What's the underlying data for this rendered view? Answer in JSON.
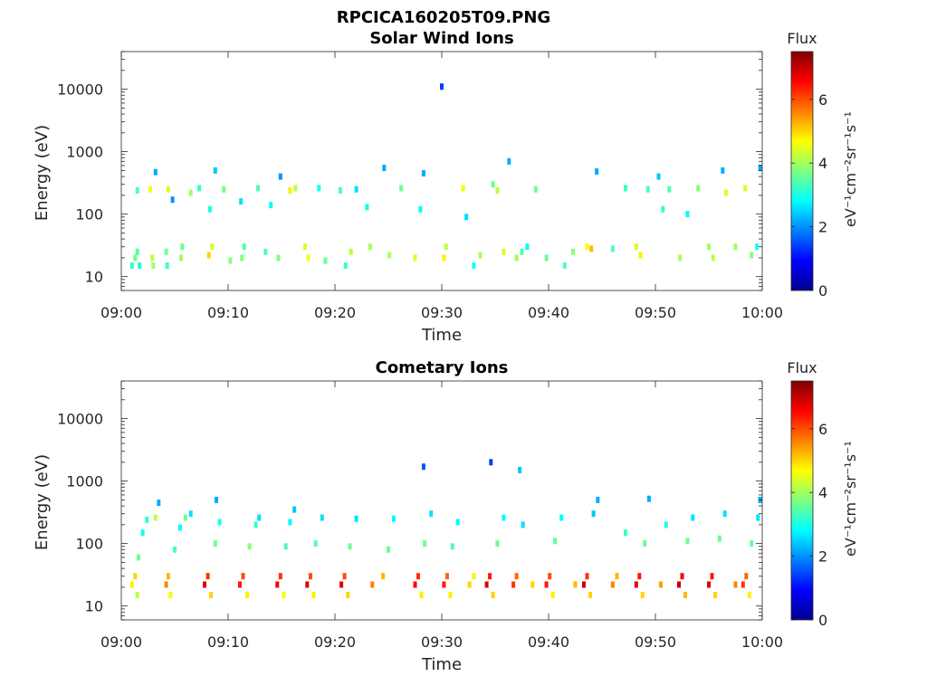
{
  "figure": {
    "filename": "RPCICA160205T09.PNG"
  },
  "colorbar": {
    "colormap": "jet",
    "title": "Flux",
    "unit_label": "eV⁻¹cm⁻²sr⁻¹s⁻¹",
    "range": [
      0,
      7.5
    ],
    "ticks": [
      0,
      2,
      4,
      6
    ]
  },
  "chart_data": [
    {
      "type": "heatmap",
      "title": "Solar Wind Ions",
      "xlabel": "Time",
      "ylabel": "Energy (eV)",
      "yscale": "log",
      "xlim": [
        "09:00",
        "10:00"
      ],
      "ylim": [
        6,
        40000
      ],
      "x_ticks": [
        "09:00",
        "09:10",
        "09:20",
        "09:30",
        "09:40",
        "09:50",
        "10:00"
      ],
      "y_ticks": [
        10,
        100,
        1000,
        10000
      ],
      "grid": false,
      "color_range": [
        0,
        7.5
      ],
      "cells": [
        [
          1.0,
          15,
          3.2
        ],
        [
          1.3,
          20,
          3.6
        ],
        [
          1.5,
          25,
          3.4
        ],
        [
          1.7,
          15,
          3.0
        ],
        [
          1.5,
          240,
          3.4
        ],
        [
          2.7,
          250,
          4.6
        ],
        [
          2.9,
          20,
          4.2
        ],
        [
          3.0,
          15,
          4.0
        ],
        [
          3.2,
          470,
          2.2
        ],
        [
          4.2,
          25,
          3.6
        ],
        [
          4.3,
          15,
          3.2
        ],
        [
          4.4,
          250,
          4.4
        ],
        [
          4.8,
          170,
          2.0
        ],
        [
          5.6,
          20,
          4.0
        ],
        [
          5.7,
          30,
          3.6
        ],
        [
          6.5,
          220,
          4.0
        ],
        [
          7.3,
          260,
          3.2
        ],
        [
          8.2,
          22,
          5.0
        ],
        [
          8.5,
          30,
          4.4
        ],
        [
          8.8,
          500,
          2.4
        ],
        [
          8.3,
          120,
          3.0
        ],
        [
          9.6,
          250,
          3.6
        ],
        [
          10.2,
          18,
          3.8
        ],
        [
          11.3,
          20,
          3.8
        ],
        [
          11.5,
          30,
          3.4
        ],
        [
          11.2,
          160,
          2.6
        ],
        [
          12.8,
          260,
          3.4
        ],
        [
          13.5,
          25,
          3.4
        ],
        [
          14.0,
          140,
          2.8
        ],
        [
          14.7,
          20,
          3.8
        ],
        [
          14.9,
          400,
          2.0
        ],
        [
          15.8,
          240,
          4.8
        ],
        [
          16.3,
          260,
          4.2
        ],
        [
          17.2,
          30,
          4.4
        ],
        [
          17.5,
          20,
          4.6
        ],
        [
          18.5,
          260,
          3.0
        ],
        [
          19.1,
          18,
          3.6
        ],
        [
          20.5,
          240,
          3.4
        ],
        [
          21.0,
          15,
          3.2
        ],
        [
          21.5,
          25,
          4.2
        ],
        [
          22.0,
          250,
          2.6
        ],
        [
          23.0,
          130,
          3.0
        ],
        [
          23.3,
          30,
          4.0
        ],
        [
          24.6,
          550,
          2.2
        ],
        [
          25.1,
          22,
          4.0
        ],
        [
          26.2,
          260,
          3.6
        ],
        [
          27.5,
          20,
          4.4
        ],
        [
          28.0,
          120,
          2.8
        ],
        [
          28.3,
          450,
          2.2
        ],
        [
          30.0,
          11000,
          1.4
        ],
        [
          30.2,
          20,
          4.8
        ],
        [
          30.4,
          30,
          4.2
        ],
        [
          32.0,
          260,
          4.6
        ],
        [
          32.3,
          90,
          2.6
        ],
        [
          33.0,
          15,
          3.0
        ],
        [
          33.6,
          22,
          4.0
        ],
        [
          34.8,
          300,
          3.6
        ],
        [
          35.2,
          240,
          4.2
        ],
        [
          35.8,
          25,
          4.4
        ],
        [
          36.3,
          700,
          2.2
        ],
        [
          37.0,
          20,
          4.0
        ],
        [
          37.5,
          25,
          3.4
        ],
        [
          38.0,
          30,
          2.8
        ],
        [
          38.8,
          250,
          3.6
        ],
        [
          39.8,
          20,
          3.6
        ],
        [
          41.5,
          15,
          3.4
        ],
        [
          42.3,
          25,
          3.8
        ],
        [
          43.6,
          30,
          4.6
        ],
        [
          44.0,
          28,
          5.2
        ],
        [
          44.5,
          480,
          2.2
        ],
        [
          46.0,
          28,
          3.4
        ],
        [
          47.2,
          260,
          3.2
        ],
        [
          48.2,
          30,
          4.4
        ],
        [
          48.6,
          22,
          4.8
        ],
        [
          49.3,
          250,
          3.4
        ],
        [
          50.3,
          400,
          2.4
        ],
        [
          50.7,
          120,
          3.2
        ],
        [
          51.3,
          250,
          3.4
        ],
        [
          52.3,
          20,
          4.0
        ],
        [
          53.0,
          100,
          2.8
        ],
        [
          54.0,
          260,
          3.8
        ],
        [
          55.0,
          30,
          4.0
        ],
        [
          55.4,
          20,
          4.2
        ],
        [
          56.3,
          500,
          2.2
        ],
        [
          56.6,
          220,
          4.4
        ],
        [
          57.5,
          30,
          4.0
        ],
        [
          58.4,
          260,
          4.4
        ],
        [
          59.0,
          22,
          3.8
        ],
        [
          59.5,
          30,
          3.0
        ],
        [
          59.8,
          550,
          2.2
        ]
      ]
    },
    {
      "type": "heatmap",
      "title": "Cometary Ions",
      "xlabel": "Time",
      "ylabel": "Energy (eV)",
      "yscale": "log",
      "xlim": [
        "09:00",
        "10:00"
      ],
      "ylim": [
        6,
        40000
      ],
      "x_ticks": [
        "09:00",
        "09:10",
        "09:20",
        "09:30",
        "09:40",
        "09:50",
        "10:00"
      ],
      "y_ticks": [
        10,
        100,
        1000,
        10000
      ],
      "grid": false,
      "color_range": [
        0,
        7.5
      ],
      "cells": [
        [
          1.0,
          22,
          4.8
        ],
        [
          1.3,
          30,
          5.0
        ],
        [
          1.5,
          15,
          4.2
        ],
        [
          1.6,
          60,
          3.6
        ],
        [
          2.0,
          150,
          3.0
        ],
        [
          2.4,
          240,
          3.2
        ],
        [
          3.2,
          260,
          4.2
        ],
        [
          3.5,
          450,
          2.2
        ],
        [
          4.2,
          22,
          5.6
        ],
        [
          4.4,
          30,
          5.2
        ],
        [
          4.6,
          15,
          4.6
        ],
        [
          5.0,
          80,
          3.4
        ],
        [
          5.5,
          180,
          2.8
        ],
        [
          6.0,
          260,
          3.6
        ],
        [
          6.5,
          300,
          2.6
        ],
        [
          7.8,
          22,
          6.8
        ],
        [
          8.1,
          30,
          6.2
        ],
        [
          8.4,
          15,
          5.0
        ],
        [
          8.8,
          100,
          3.6
        ],
        [
          9.2,
          220,
          3.0
        ],
        [
          8.9,
          500,
          2.2
        ],
        [
          11.1,
          22,
          6.4
        ],
        [
          11.4,
          30,
          6.0
        ],
        [
          11.8,
          15,
          4.8
        ],
        [
          12.0,
          90,
          3.8
        ],
        [
          12.6,
          200,
          3.2
        ],
        [
          12.9,
          260,
          2.6
        ],
        [
          14.6,
          22,
          6.6
        ],
        [
          14.9,
          30,
          6.2
        ],
        [
          15.2,
          15,
          4.6
        ],
        [
          15.4,
          90,
          3.4
        ],
        [
          15.8,
          220,
          2.8
        ],
        [
          16.2,
          350,
          2.4
        ],
        [
          17.4,
          22,
          6.8
        ],
        [
          17.7,
          30,
          6.0
        ],
        [
          18.0,
          15,
          4.8
        ],
        [
          18.2,
          100,
          3.4
        ],
        [
          18.8,
          260,
          2.6
        ],
        [
          20.6,
          22,
          6.8
        ],
        [
          20.9,
          30,
          6.0
        ],
        [
          21.2,
          15,
          5.0
        ],
        [
          21.4,
          90,
          3.6
        ],
        [
          22.0,
          250,
          2.6
        ],
        [
          23.5,
          22,
          5.6
        ],
        [
          24.5,
          30,
          5.2
        ],
        [
          25.0,
          80,
          3.6
        ],
        [
          25.5,
          250,
          2.8
        ],
        [
          27.5,
          22,
          6.6
        ],
        [
          27.8,
          30,
          6.2
        ],
        [
          28.1,
          15,
          4.8
        ],
        [
          28.4,
          100,
          3.6
        ],
        [
          28.3,
          1700,
          1.6
        ],
        [
          29.0,
          300,
          2.6
        ],
        [
          30.2,
          22,
          6.4
        ],
        [
          30.5,
          30,
          5.8
        ],
        [
          30.8,
          15,
          4.8
        ],
        [
          31.0,
          90,
          3.4
        ],
        [
          31.5,
          220,
          2.8
        ],
        [
          32.6,
          22,
          5.0
        ],
        [
          33.0,
          30,
          4.8
        ],
        [
          34.2,
          22,
          6.8
        ],
        [
          34.5,
          30,
          6.4
        ],
        [
          34.8,
          15,
          5.0
        ],
        [
          34.6,
          2000,
          1.4
        ],
        [
          35.2,
          100,
          3.6
        ],
        [
          35.8,
          260,
          2.8
        ],
        [
          36.7,
          22,
          6.2
        ],
        [
          37.0,
          30,
          5.8
        ],
        [
          37.3,
          1500,
          2.4
        ],
        [
          37.6,
          200,
          2.6
        ],
        [
          38.5,
          22,
          5.0
        ],
        [
          39.8,
          22,
          6.4
        ],
        [
          40.1,
          30,
          6.0
        ],
        [
          40.4,
          15,
          4.8
        ],
        [
          40.6,
          110,
          3.6
        ],
        [
          41.2,
          260,
          2.8
        ],
        [
          42.5,
          22,
          5.2
        ],
        [
          43.3,
          22,
          7.0
        ],
        [
          43.6,
          30,
          6.2
        ],
        [
          43.9,
          15,
          5.0
        ],
        [
          44.2,
          300,
          2.4
        ],
        [
          44.6,
          500,
          2.2
        ],
        [
          46.0,
          22,
          5.6
        ],
        [
          46.4,
          30,
          5.2
        ],
        [
          47.2,
          150,
          3.2
        ],
        [
          48.2,
          22,
          6.8
        ],
        [
          48.5,
          30,
          6.4
        ],
        [
          48.8,
          15,
          5.0
        ],
        [
          49.0,
          100,
          3.6
        ],
        [
          49.4,
          520,
          2.2
        ],
        [
          50.5,
          22,
          5.4
        ],
        [
          51.0,
          200,
          3.0
        ],
        [
          52.2,
          22,
          7.0
        ],
        [
          52.5,
          30,
          6.6
        ],
        [
          52.8,
          15,
          5.2
        ],
        [
          53.0,
          110,
          3.6
        ],
        [
          53.5,
          260,
          2.6
        ],
        [
          55.0,
          22,
          6.8
        ],
        [
          55.3,
          30,
          6.4
        ],
        [
          55.6,
          15,
          5.0
        ],
        [
          56.0,
          120,
          3.6
        ],
        [
          56.5,
          300,
          2.6
        ],
        [
          57.5,
          22,
          5.6
        ],
        [
          58.2,
          22,
          6.2
        ],
        [
          58.5,
          30,
          5.8
        ],
        [
          58.8,
          15,
          4.8
        ],
        [
          59.0,
          100,
          3.6
        ],
        [
          59.6,
          260,
          2.6
        ],
        [
          59.8,
          500,
          2.2
        ]
      ]
    }
  ]
}
